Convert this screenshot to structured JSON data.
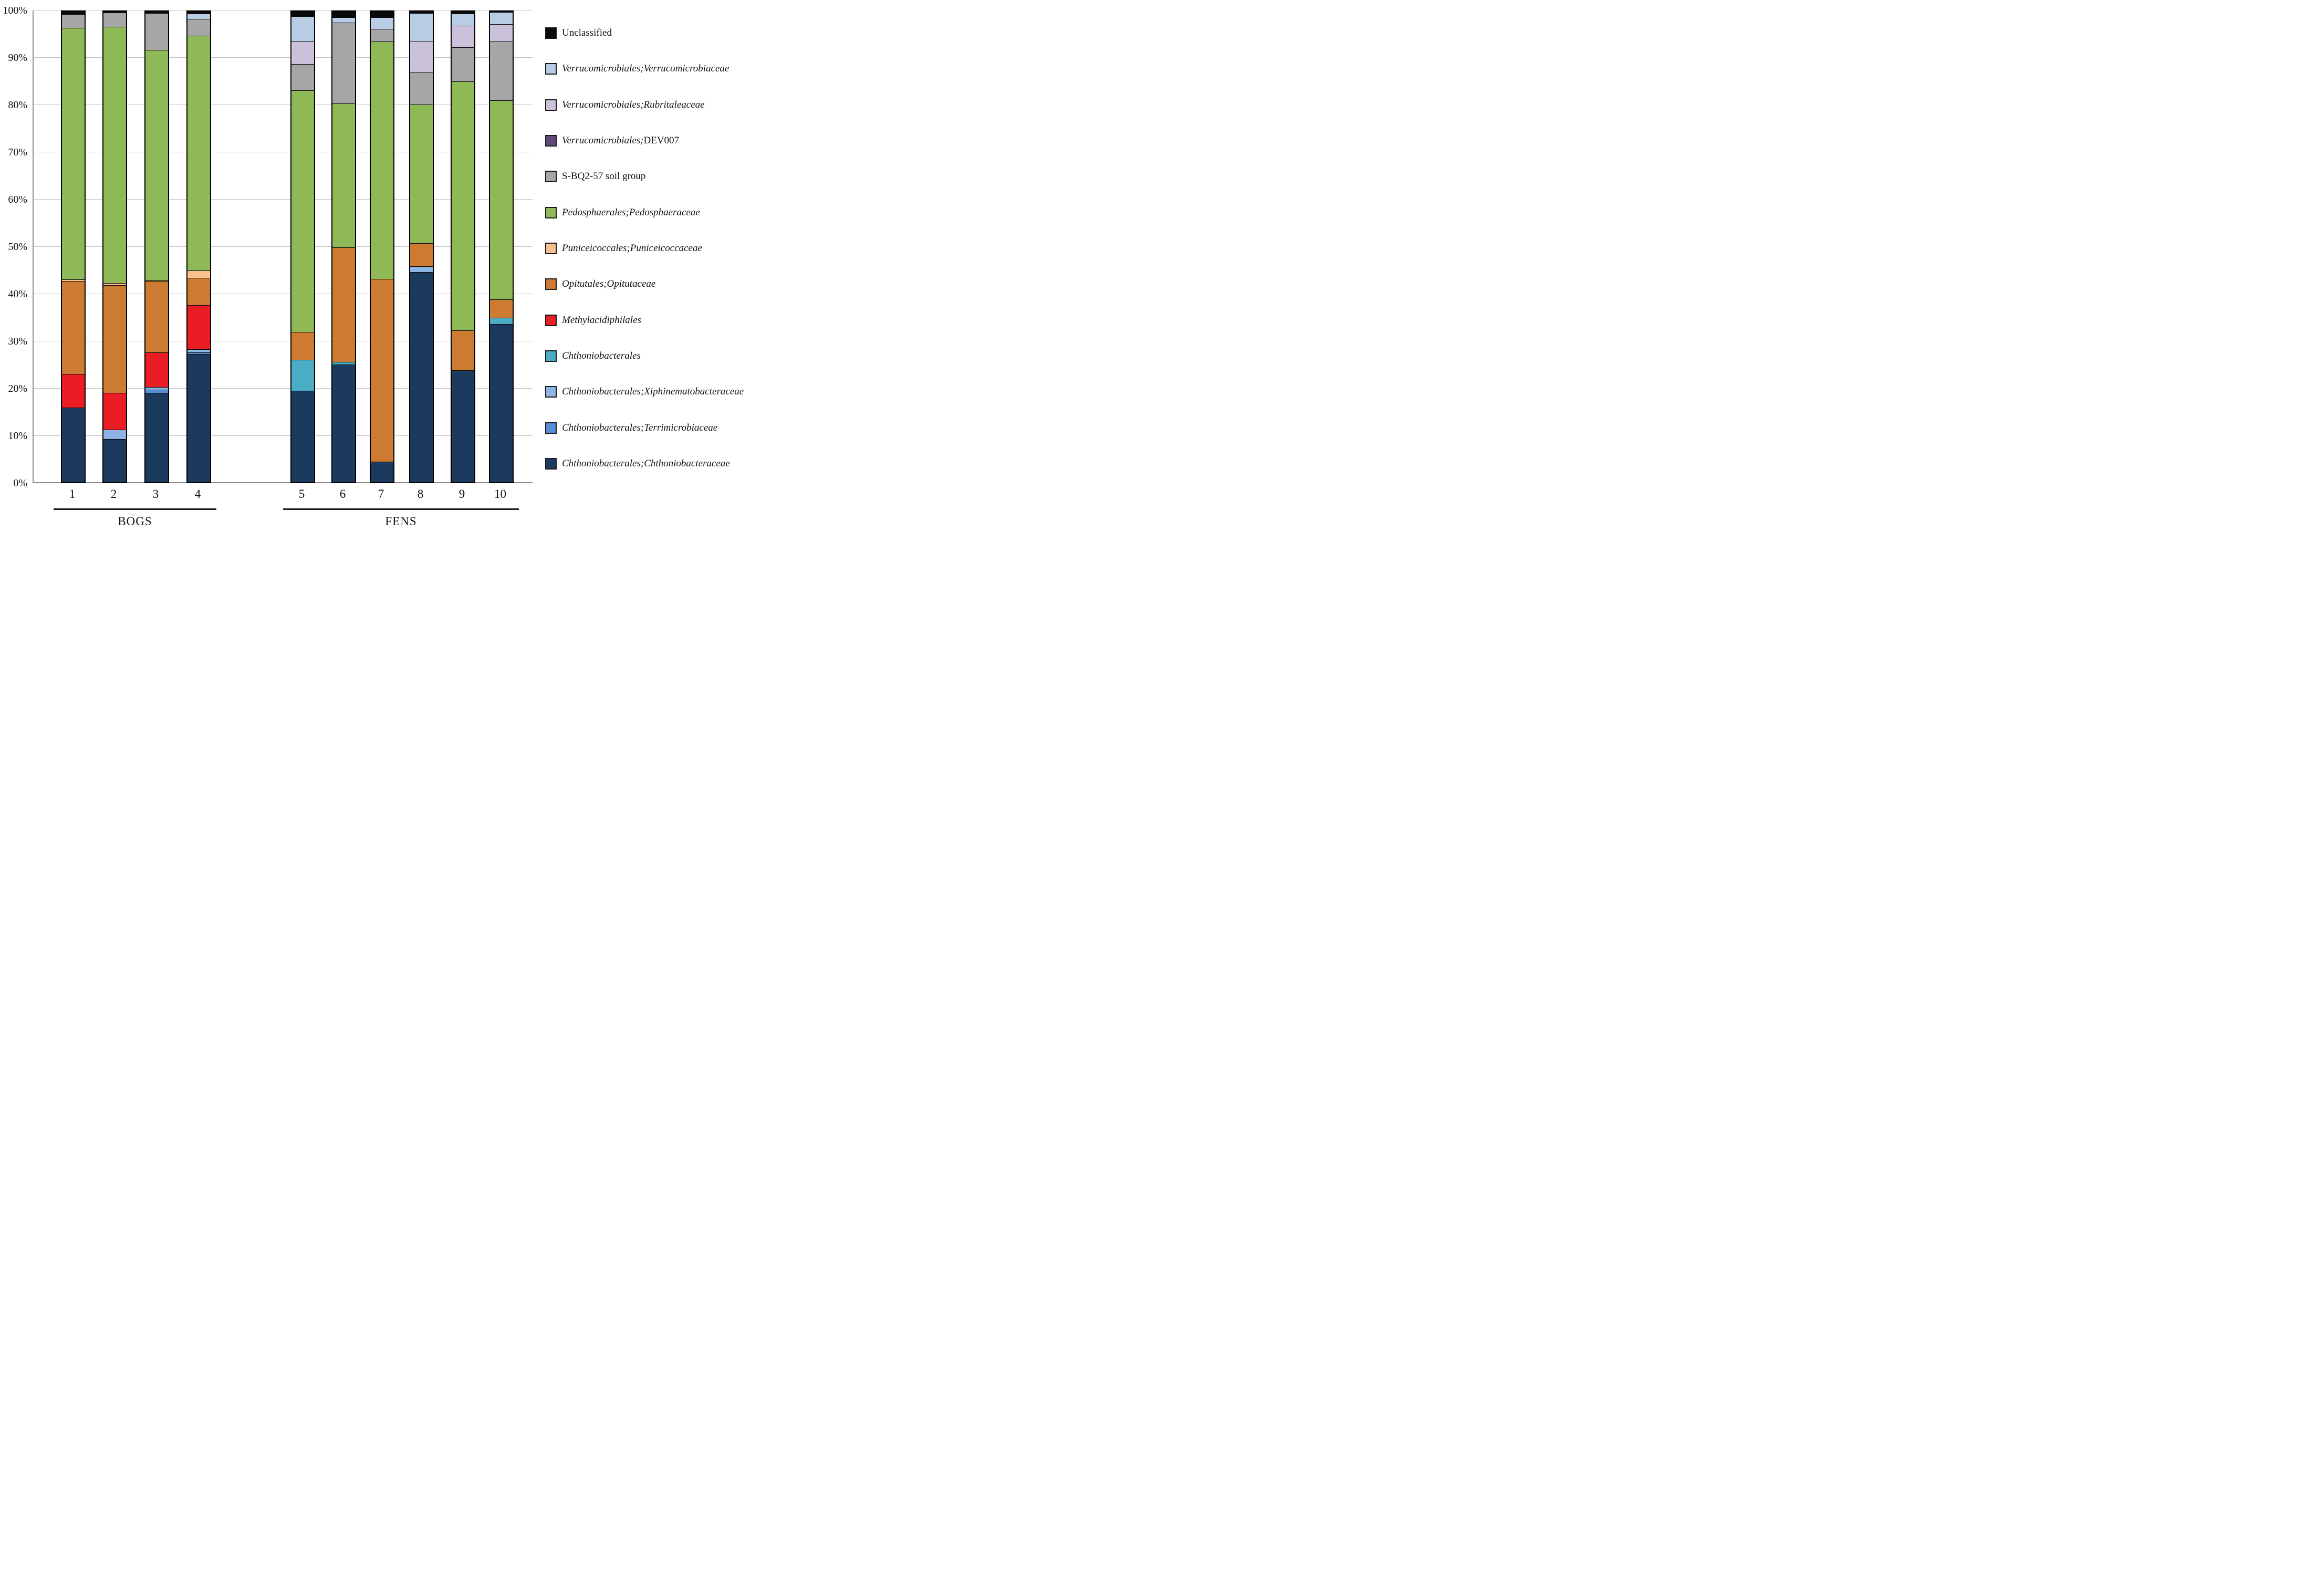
{
  "chart_data": {
    "type": "bar",
    "stacked": true,
    "unit": "%",
    "ylim": [
      0,
      100
    ],
    "ytick_labels": [
      "0%",
      "10%",
      "20%",
      "30%",
      "40%",
      "50%",
      "60%",
      "70%",
      "80%",
      "90%",
      "100%"
    ],
    "grid": "horizontal",
    "legend_position": "right",
    "categories": [
      "1",
      "2",
      "3",
      "4",
      "5",
      "6",
      "7",
      "8",
      "9",
      "10"
    ],
    "groups": [
      {
        "label": "BOGS",
        "categories": [
          "1",
          "2",
          "3",
          "4"
        ]
      },
      {
        "label": "FENS",
        "categories": [
          "5",
          "6",
          "7",
          "8",
          "9",
          "10"
        ]
      }
    ],
    "stack_order_bottom_to_top": [
      "Chthoniobacterales;Chthoniobacteraceae",
      "Chthoniobacterales;Terrimicrobiaceae",
      "Chthoniobacterales;Xiphinematobacteraceae",
      "Chthoniobacterales",
      "Methylacidiphilales",
      "Opitutales;Opitutaceae",
      "Puniceicoccales;Puniceicoccaceae",
      "Pedosphaerales;Pedosphaeraceae",
      "S-BQ2-57 soil group",
      "Verrucomicrobiales;DEV007",
      "Verrucomicrobiales;Rubritaleaceae",
      "Verrucomicrobiales;Verrucomicrobiaceae",
      "Unclassified"
    ],
    "series": [
      {
        "name": "Unclassified",
        "color": "#0a0a0a",
        "values": [
          0.5,
          0.2,
          0.3,
          0.4,
          1.0,
          1.2,
          1.2,
          0.3,
          0.4,
          0.1
        ]
      },
      {
        "name": "Verrucomicrobiales;Verrucomicrobiaceae",
        "color": "#b8cce4",
        "values": [
          0,
          0,
          0,
          1.2,
          5.3,
          1.1,
          2.5,
          5.9,
          2.6,
          2.6
        ]
      },
      {
        "name": "Verrucomicrobiales;Rubritaleaceae",
        "color": "#ccc1da",
        "values": [
          0,
          0,
          0,
          0,
          4.8,
          0,
          0,
          6.7,
          4.6,
          3.7
        ]
      },
      {
        "name": "Verrucomicrobiales;DEV007",
        "color": "#5f497a",
        "values": [
          0,
          0,
          0,
          0,
          0,
          0,
          0,
          0,
          0,
          0
        ]
      },
      {
        "name": "S-BQ2-57 soil group",
        "color": "#a6a6a6",
        "values": [
          3.0,
          3.0,
          7.8,
          3.5,
          5.6,
          17.2,
          2.7,
          6.9,
          7.2,
          12.5
        ]
      },
      {
        "name": "Pedosphaerales;Pedosphaeraceae",
        "color": "#8fb957",
        "values": [
          53.4,
          54.5,
          49.0,
          49.9,
          51.4,
          30.6,
          50.4,
          29.4,
          52.9,
          42.3
        ]
      },
      {
        "name": "Puniceicoccales;Puniceicoccaceae",
        "color": "#fac08f",
        "values": [
          0.4,
          0.4,
          0.2,
          1.6,
          0,
          0,
          0,
          0,
          0,
          0
        ]
      },
      {
        "name": "Opitutales;Opitutaceae",
        "color": "#cd7b32",
        "values": [
          19.7,
          22.9,
          15.1,
          5.8,
          5.9,
          24.3,
          38.8,
          4.9,
          8.5,
          3.9
        ]
      },
      {
        "name": "Methylacidiphilales",
        "color": "#ea1c24",
        "values": [
          7.2,
          7.8,
          7.4,
          9.4,
          0,
          0,
          0,
          0,
          0,
          0
        ]
      },
      {
        "name": "Chthoniobacterales",
        "color": "#4bacc6",
        "values": [
          0,
          0,
          0,
          0,
          6.6,
          0.6,
          0,
          0,
          0,
          1.3
        ]
      },
      {
        "name": "Chthoniobacterales;Xiphinematobacteraceae",
        "color": "#8db4e2",
        "values": [
          0,
          2.0,
          0.6,
          0.6,
          0,
          0,
          0,
          1.3,
          0,
          0
        ]
      },
      {
        "name": "Chthoniobacterales;Terrimicrobiaceae",
        "color": "#558ed5",
        "values": [
          0,
          0,
          0.6,
          0.4,
          0,
          0,
          0,
          0,
          0,
          0
        ]
      },
      {
        "name": "Chthoniobacterales;Chthoniobacteraceae",
        "color": "#1c3a5e",
        "values": [
          15.8,
          9.2,
          19.0,
          27.2,
          19.4,
          25.0,
          4.4,
          44.6,
          23.8,
          33.6
        ]
      }
    ]
  },
  "legend": {
    "items": [
      {
        "italic": "",
        "plain": "Unclassified",
        "color": "#0a0a0a"
      },
      {
        "italic": "Verrucomicrobiales;Verrucomicrobiaceae",
        "plain": "",
        "color": "#b8cce4"
      },
      {
        "italic": "Verrucomicrobiales;Rubritaleaceae",
        "plain": "",
        "color": "#ccc1da"
      },
      {
        "italic": "Verrucomicrobiales;",
        "plain": "DEV007",
        "color": "#5f497a"
      },
      {
        "italic": "",
        "plain": "S-BQ2-57 soil group",
        "color": "#a6a6a6"
      },
      {
        "italic": "Pedosphaerales;Pedosphaeraceae",
        "plain": "",
        "color": "#8fb957"
      },
      {
        "italic": "Puniceicoccales;Puniceicoccaceae",
        "plain": "",
        "color": "#fac08f"
      },
      {
        "italic": "Opitutales;Opitutaceae",
        "plain": "",
        "color": "#cd7b32"
      },
      {
        "italic": "Methylacidiphilales",
        "plain": "",
        "color": "#ea1c24"
      },
      {
        "italic": "Chthoniobacterales",
        "plain": "",
        "color": "#4bacc6"
      },
      {
        "italic": "Chthoniobacterales;Xiphinematobacteraceae",
        "plain": "",
        "color": "#8db4e2"
      },
      {
        "italic": "Chthoniobacterales;Terrimicrobiaceae",
        "plain": "",
        "color": "#558ed5"
      },
      {
        "italic": "Chthoniobacterales;Chthoniobacteraceae",
        "plain": "",
        "color": "#1c3a5e"
      }
    ]
  }
}
